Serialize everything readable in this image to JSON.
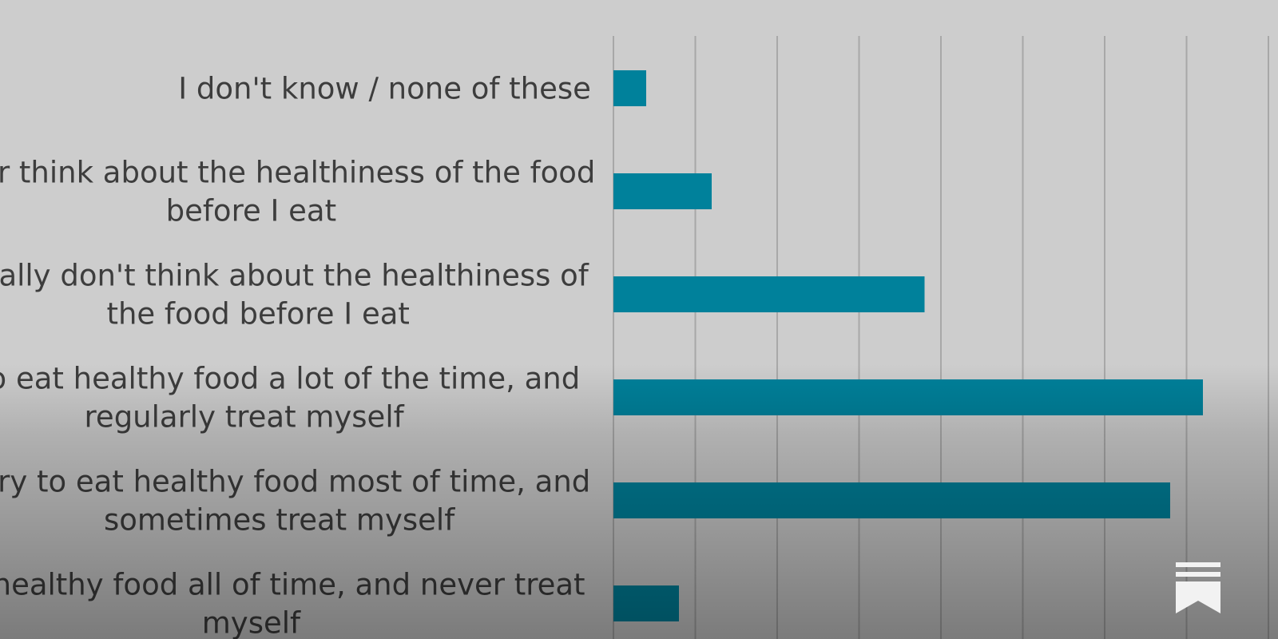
{
  "chart_data": {
    "type": "bar",
    "orientation": "horizontal",
    "title": "",
    "xlabel": "",
    "ylabel": "",
    "xlim": [
      0,
      40
    ],
    "grid": true,
    "categories": [
      "I don't know / none of these",
      "I never think about the healthiness of the food before I eat",
      "I usually don't think about the healthiness of the food before I eat",
      "I try to eat healthy food a lot of the time, and regularly treat myself",
      "I try to eat healthy food most of time, and sometimes treat myself",
      "I eat healthy food all of time, and never treat myself"
    ],
    "label_lines": [
      [
        "I don't know / none of these"
      ],
      [
        "I never think about the healthiness of the food",
        "before I eat"
      ],
      [
        "I usually don't think about the healthiness of",
        "the food before I eat"
      ],
      [
        "I try to eat healthy food a lot of the time, and",
        "regularly treat myself"
      ],
      [
        "I try to eat healthy food most of time, and",
        "sometimes treat myself"
      ],
      [
        "I eat healthy food all of time, and never treat",
        "myself"
      ]
    ],
    "values": [
      2,
      6,
      19,
      36,
      34,
      4
    ],
    "bar_color": "#00819b"
  },
  "colors": {
    "background": "#cdcdcd",
    "gridline": "#a8a8a8",
    "label": "#3d3d3d",
    "logo": "#f2f2f2"
  },
  "icons": {
    "logo": "bookmark-icon"
  }
}
